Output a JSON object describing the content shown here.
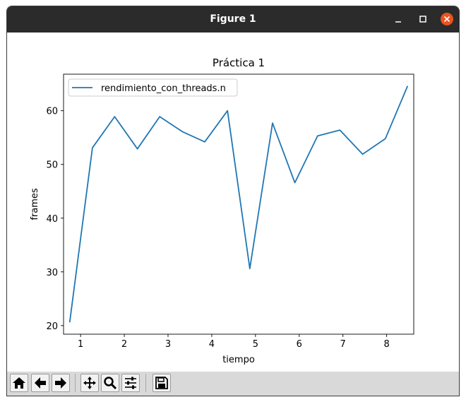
{
  "window": {
    "title": "Figure 1",
    "close_color": "#e95420"
  },
  "chart_data": {
    "type": "line",
    "title": "Práctica 1",
    "xlabel": "tiempo",
    "ylabel": "frames",
    "xlim": [
      0.61,
      8.62
    ],
    "ylim": [
      18.4,
      66.8
    ],
    "xticks": [
      "1",
      "2",
      "3",
      "4",
      "5",
      "6",
      "7",
      "8"
    ],
    "yticks": [
      "20",
      "30",
      "40",
      "50",
      "60"
    ],
    "legend_position": "top-left",
    "grid": false,
    "series": [
      {
        "name": "rendimiento_con_threads.n",
        "color": "#1f77b4",
        "x": [
          0.75,
          1.27,
          1.78,
          2.3,
          2.81,
          3.33,
          3.84,
          4.36,
          4.87,
          5.39,
          5.9,
          6.42,
          6.93,
          7.45,
          7.97,
          8.48
        ],
        "y": [
          20.6,
          53.1,
          58.9,
          52.9,
          58.9,
          56.1,
          54.2,
          60.0,
          30.6,
          57.7,
          46.6,
          55.3,
          56.4,
          51.9,
          54.8,
          64.6
        ]
      }
    ]
  },
  "toolbar": {
    "buttons": [
      "home-icon",
      "back-icon",
      "forward-icon",
      "pan-icon",
      "zoom-icon",
      "configure-subplots-icon",
      "save-icon"
    ]
  }
}
